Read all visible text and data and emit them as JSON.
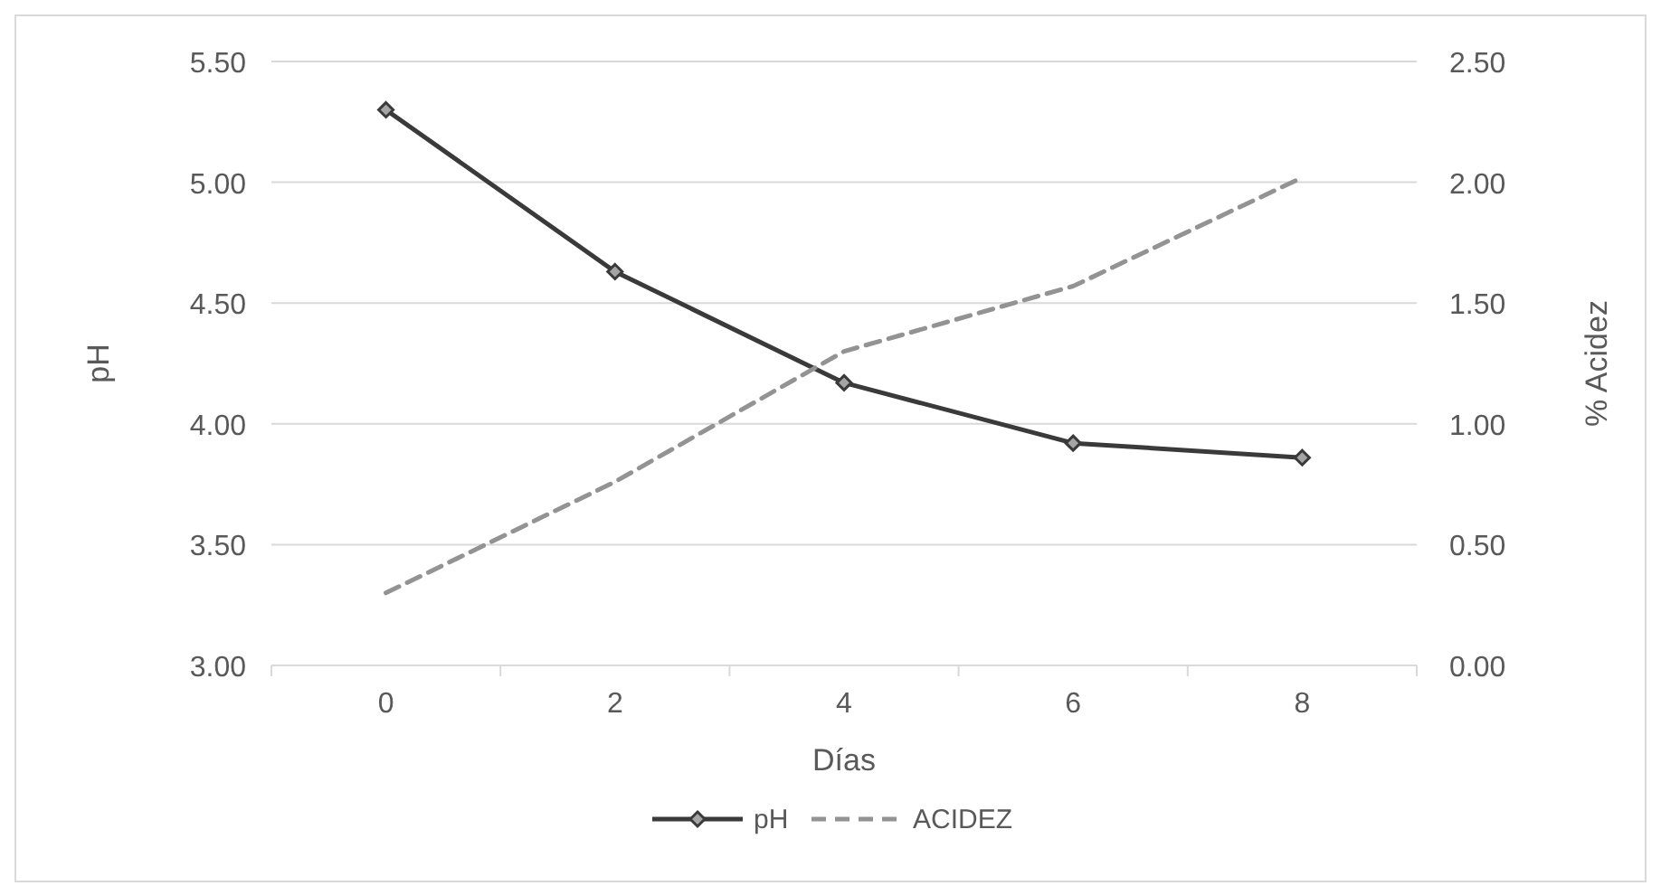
{
  "chart_data": {
    "type": "line",
    "xlabel": "Días",
    "ylabel": "pH",
    "y2label": "% Acidez",
    "categories": [
      "0",
      "2",
      "4",
      "6",
      "8"
    ],
    "series": [
      {
        "name": "pH",
        "color": "#3a3a3a",
        "values": [
          5.3,
          4.63,
          4.17,
          3.92,
          3.86
        ],
        "marker": "diamond",
        "line_style": "solid"
      },
      {
        "name": "ACIDEZ",
        "color": "#939393",
        "values": [
          0.3,
          0.76,
          1.3,
          1.57,
          2.02
        ],
        "axis": "y2",
        "marker": "none",
        "line_style": "dashed"
      }
    ],
    "ylim": [
      3,
      5.5
    ],
    "yticks": [
      {
        "value": 3,
        "label": "3.00"
      },
      {
        "value": 3.5,
        "label": "3.50"
      },
      {
        "value": 4,
        "label": "4.00"
      },
      {
        "value": 4.5,
        "label": "4.50"
      },
      {
        "value": 5,
        "label": "5.00"
      },
      {
        "value": 5.5,
        "label": "5.50"
      }
    ],
    "y2lim": [
      0,
      2.5
    ],
    "y2ticks": [
      {
        "value": 0,
        "label": "0.00"
      },
      {
        "value": 0.5,
        "label": "0.50"
      },
      {
        "value": 1,
        "label": "1.00"
      },
      {
        "value": 1.5,
        "label": "1.50"
      },
      {
        "value": 2,
        "label": "2.00"
      },
      {
        "value": 2.5,
        "label": "2.50"
      }
    ],
    "grid": "y",
    "legend": "bottom"
  }
}
